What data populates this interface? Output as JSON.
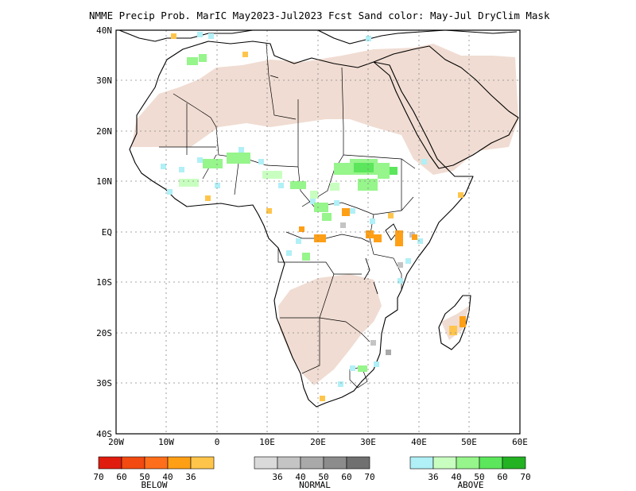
{
  "title": "NMME Precip Prob. MarIC  May2023-Jul2023 Fcst  Sand color: May-Jul DryClim Mask",
  "y_ticks": [
    "40N",
    "30N",
    "20N",
    "10N",
    "EQ",
    "10S",
    "20S",
    "30S",
    "40S"
  ],
  "x_ticks": [
    "20W",
    "10W",
    "0",
    "10E",
    "20E",
    "30E",
    "40E",
    "50E",
    "60E"
  ],
  "legends": {
    "below": {
      "title": "BELOW",
      "colors": [
        "#e01c0e",
        "#f24a10",
        "#ff6e1a",
        "#ff9f16",
        "#ffc54b"
      ],
      "labels": [
        "70",
        "60",
        "50",
        "40",
        "36"
      ]
    },
    "normal": {
      "title": "NORMAL",
      "colors": [
        "#dadada",
        "#c4c4c4",
        "#a9a9a9",
        "#8c8c8c",
        "#707070"
      ],
      "labels": [
        "36",
        "40",
        "50",
        "60",
        "70"
      ]
    },
    "above": {
      "title": "ABOVE",
      "colors": [
        "#b0f0f6",
        "#c8ffc0",
        "#96f58b",
        "#5be65b",
        "#22b222"
      ],
      "labels": [
        "36",
        "40",
        "50",
        "60",
        "70"
      ]
    }
  },
  "mask_color": "#f0dcd2"
}
